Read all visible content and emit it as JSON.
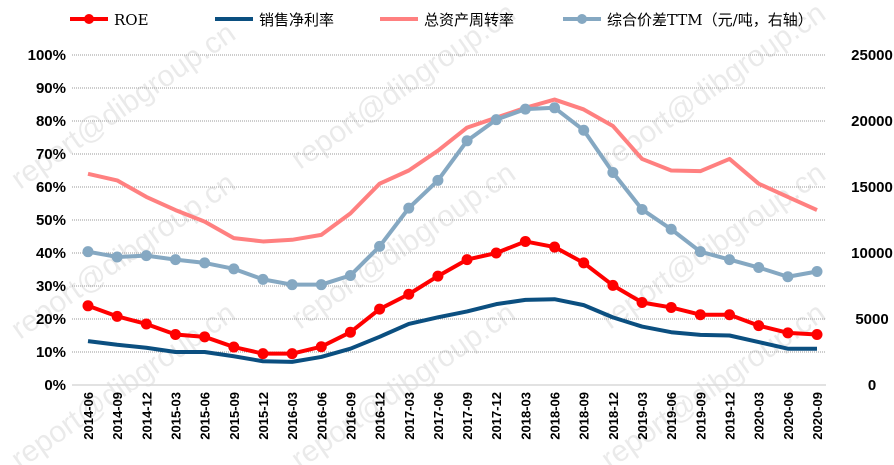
{
  "chart_data": {
    "type": "line",
    "title": "",
    "categories": [
      "2014-06",
      "2014-09",
      "2014-12",
      "2015-03",
      "2015-06",
      "2015-09",
      "2015-12",
      "2016-03",
      "2016-06",
      "2016-09",
      "2016-12",
      "2017-03",
      "2017-06",
      "2017-09",
      "2017-12",
      "2018-03",
      "2018-06",
      "2018-09",
      "2018-12",
      "2019-03",
      "2019-06",
      "2019-09",
      "2019-12",
      "2020-03",
      "2020-06",
      "2020-09"
    ],
    "left_axis": {
      "ylim": [
        0,
        100
      ],
      "ticks": [
        "0%",
        "10%",
        "20%",
        "30%",
        "40%",
        "50%",
        "60%",
        "70%",
        "80%",
        "90%",
        "100%"
      ]
    },
    "right_axis": {
      "ylim": [
        0,
        25000
      ],
      "ticks": [
        "0",
        "5000",
        "10000",
        "15000",
        "20000",
        "25000"
      ]
    },
    "grid": "horizontal dotted",
    "legend_position": "top",
    "series": [
      {
        "name": "ROE",
        "axis": "left",
        "color": "#ff0000",
        "markers": true,
        "values": [
          24,
          20.8,
          18.5,
          15.3,
          14.6,
          11.5,
          9.5,
          9.5,
          11.6,
          16,
          23,
          27.5,
          33,
          38,
          40,
          43.5,
          41.8,
          37,
          30.2,
          25,
          23.5,
          21.3,
          21.3,
          18,
          15.8,
          15.3
        ]
      },
      {
        "name": "销售净利率",
        "axis": "left",
        "color": "#0b4f80",
        "markers": false,
        "values": [
          13.3,
          12.2,
          11.3,
          10,
          10,
          8.7,
          7.2,
          7,
          8.5,
          11,
          14.6,
          18.5,
          20.5,
          22.3,
          24.5,
          25.8,
          26,
          24.2,
          20.5,
          17.7,
          16,
          15.2,
          15,
          13,
          11,
          11
        ]
      },
      {
        "name": "总资产周转率",
        "axis": "left",
        "color": "#ff8080",
        "markers": false,
        "values": [
          64,
          62,
          57,
          53,
          49.5,
          44.5,
          43.5,
          44,
          45.5,
          52,
          61,
          65,
          71,
          78,
          81,
          84,
          86.5,
          83.5,
          78.5,
          68.5,
          65,
          64.8,
          68.5,
          61,
          57,
          53
        ]
      },
      {
        "name": "综合价差TTM（元/吨，右轴）",
        "axis": "right",
        "color": "#85a8c2",
        "markers": true,
        "values": [
          10100,
          9700,
          9800,
          9500,
          9250,
          8800,
          8000,
          7600,
          7600,
          8300,
          10500,
          13400,
          15500,
          18500,
          20100,
          20900,
          21000,
          19300,
          16100,
          13300,
          11800,
          10100,
          9500,
          8900,
          8200,
          8600
        ]
      }
    ]
  },
  "watermark": "report@dibgroup.cn"
}
